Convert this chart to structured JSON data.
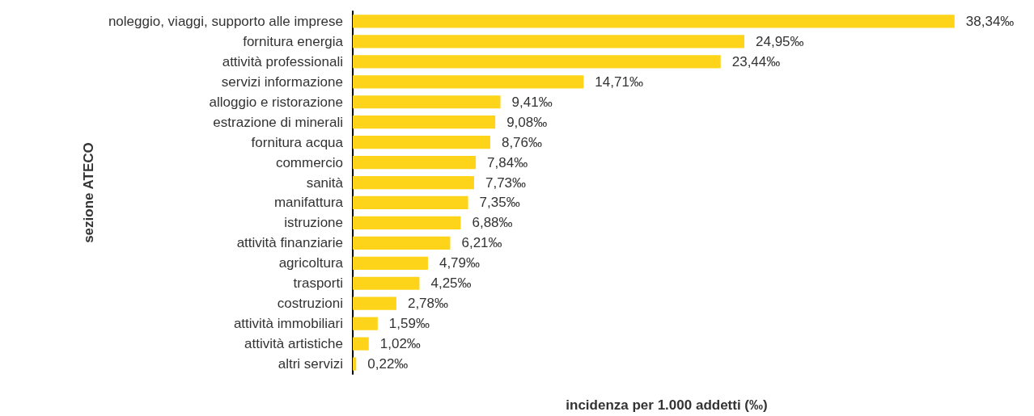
{
  "chart_data": {
    "type": "bar",
    "orientation": "horizontal",
    "xlabel": "incidenza per 1.000 addetti (‰)",
    "ylabel": "sezione ATECO",
    "categories": [
      "noleggio, viaggi, supporto alle imprese",
      "fornitura energia",
      "attività professionali",
      "servizi informazione",
      "alloggio e ristorazione",
      "estrazione di minerali",
      "fornitura acqua",
      "commercio",
      "sanità",
      "manifattura",
      "istruzione",
      "attività finanziarie",
      "agricoltura",
      "trasporti",
      "costruzioni",
      "attività immobiliari",
      "attività artistiche",
      "altri servizi"
    ],
    "values": [
      38.34,
      24.95,
      23.44,
      14.71,
      9.41,
      9.08,
      8.76,
      7.84,
      7.73,
      7.35,
      6.88,
      6.21,
      4.79,
      4.25,
      2.78,
      1.59,
      1.02,
      0.22
    ],
    "value_labels": [
      "38,34‰",
      "24,95‰",
      "23,44‰",
      "14,71‰",
      "9,41‰",
      "9,08‰",
      "8,76‰",
      "7,84‰",
      "7,73‰",
      "7,35‰",
      "6,88‰",
      "6,21‰",
      "4,79‰",
      "4,25‰",
      "2,78‰",
      "1,59‰",
      "1,02‰",
      "0,22‰"
    ],
    "color": "#fdd419",
    "grid": false
  }
}
